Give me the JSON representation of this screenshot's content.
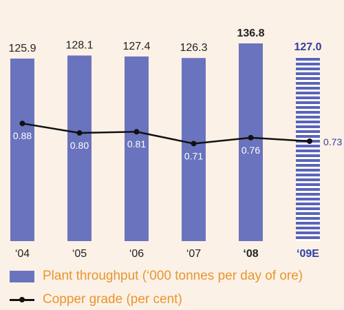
{
  "chart_data": {
    "type": "bar",
    "categories": [
      "‘04",
      "‘05",
      "‘06",
      "‘07",
      "‘08",
      "‘09E"
    ],
    "series": [
      {
        "name": "Plant throughput (‘000 tonnes per day of ore)",
        "type": "bar",
        "values": [
          125.9,
          128.1,
          127.4,
          126.3,
          136.8,
          127.0
        ]
      },
      {
        "name": "Copper grade (per cent)",
        "type": "line",
        "values": [
          0.88,
          0.8,
          0.81,
          0.71,
          0.76,
          0.73
        ]
      }
    ],
    "value_labels": [
      "125.9",
      "128.1",
      "127.4",
      "126.3",
      "136.8",
      "127.0"
    ],
    "grade_labels": [
      "0.88",
      "0.80",
      "0.81",
      "0.71",
      "0.76",
      "0.73"
    ],
    "highlight_category": "‘08",
    "estimate_category": "‘09E",
    "colors": {
      "bar": "#6a73bd",
      "estimate": "#5a64b8",
      "line": "#111111",
      "legend_text": "#e8952f",
      "background": "#fcf1e6"
    }
  },
  "legend": {
    "bar_label": "Plant throughput (‘000 tonnes per day of ore)",
    "line_label": "Copper grade (per cent)"
  }
}
